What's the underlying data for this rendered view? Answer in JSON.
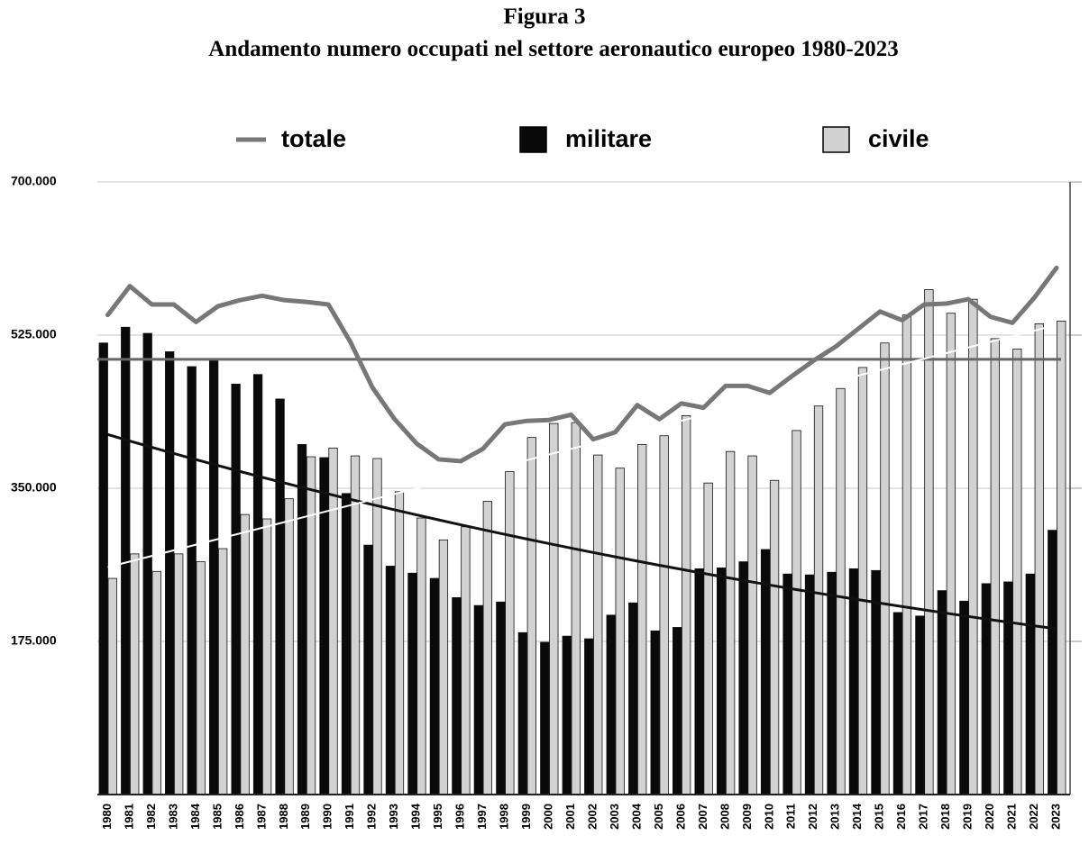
{
  "chart_data": {
    "type": "bar-line",
    "title": "Figura 3",
    "subtitle": "Andamento numero occupati nel settore aeronautico europeo 1980-2023",
    "categories": [
      "1980",
      "1981",
      "1982",
      "1983",
      "1984",
      "1985",
      "1986",
      "1987",
      "1988",
      "1989",
      "1990",
      "1991",
      "1992",
      "1993",
      "1994",
      "1995",
      "1996",
      "1997",
      "1998",
      "1999",
      "2000",
      "2001",
      "2002",
      "2003",
      "2004",
      "2005",
      "2006",
      "2007",
      "2008",
      "2009",
      "2010",
      "2011",
      "2012",
      "2013",
      "2014",
      "2015",
      "2016",
      "2017",
      "2018",
      "2019",
      "2020",
      "2021",
      "2022",
      "2023"
    ],
    "series": [
      {
        "name": "totale",
        "type": "line",
        "color": "#777777",
        "values": [
          548000,
          581000,
          560000,
          560000,
          540000,
          558000,
          565000,
          570000,
          565000,
          563000,
          560000,
          517000,
          465000,
          429000,
          401000,
          383000,
          381000,
          395000,
          423000,
          427000,
          428000,
          434000,
          406000,
          414000,
          445000,
          429000,
          447000,
          442000,
          467000,
          467000,
          459000,
          478000,
          496000,
          512000,
          532000,
          552000,
          542000,
          560000,
          561000,
          566000,
          546000,
          539000,
          568000,
          602000
        ]
      },
      {
        "name": "militare",
        "type": "bar",
        "color": "#0a0a0a",
        "values": [
          516000,
          534000,
          527000,
          506000,
          489000,
          498000,
          469000,
          480000,
          452000,
          400000,
          385000,
          344000,
          285000,
          261000,
          253000,
          247000,
          225000,
          216000,
          220000,
          185000,
          174000,
          181000,
          178000,
          205000,
          219000,
          187000,
          191000,
          258000,
          259000,
          266000,
          280000,
          252000,
          251000,
          254000,
          258000,
          256000,
          208000,
          204000,
          233000,
          221000,
          241000,
          243000,
          252000,
          302000
        ]
      },
      {
        "name": "civile",
        "type": "bar",
        "color": "#d2d2d2",
        "values": [
          247000,
          275000,
          255000,
          275000,
          266000,
          281000,
          320000,
          315000,
          338000,
          386000,
          396000,
          387000,
          384000,
          346000,
          316000,
          291000,
          306000,
          335000,
          369000,
          408000,
          424000,
          425000,
          388000,
          373000,
          400000,
          410000,
          433000,
          356000,
          392000,
          387000,
          359000,
          416000,
          444000,
          464000,
          488000,
          516000,
          548000,
          577000,
          550000,
          566000,
          521000,
          509000,
          538000,
          541000
        ]
      }
    ],
    "ylim": [
      0,
      700000
    ],
    "yticks": [
      {
        "value": 175000,
        "label": "175.000"
      },
      {
        "value": 350000,
        "label": "350.000"
      },
      {
        "value": 525000,
        "label": "525.000"
      },
      {
        "value": 700000,
        "label": "700.000"
      }
    ],
    "grid": true,
    "legend": "top"
  }
}
